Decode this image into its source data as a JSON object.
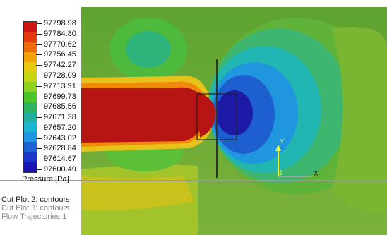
{
  "legend": {
    "title": "Pressure [Pa]",
    "ticks": [
      "97798.98",
      "97784.80",
      "97770.62",
      "97756.45",
      "97742.27",
      "97728.09",
      "97713.91",
      "97699.73",
      "97685.56",
      "97671.38",
      "97657.20",
      "97643.02",
      "97628.84",
      "97614.67",
      "97600.49"
    ],
    "colors": [
      "#d01414",
      "#e43a0c",
      "#ee6a0a",
      "#f4a106",
      "#e7c90e",
      "#c6d311",
      "#8ed11e",
      "#4cc42a",
      "#2cb45e",
      "#1fb0a2",
      "#1ab6d4",
      "#1d95e2",
      "#1d63d6",
      "#1c35c8",
      "#1a13b8"
    ]
  },
  "plots": [
    {
      "label": "Cut Plot 2: contours",
      "color": "#222222"
    },
    {
      "label": "Cut Plot 3: contours",
      "color": "#8a8a8a"
    },
    {
      "label": "Flow Trajectories 1",
      "color": "#8a8a8a"
    }
  ],
  "triad": {
    "y_label": "Y",
    "z_label": "Z",
    "x_label": "X"
  },
  "colors": {
    "background_field": "#6aa93a",
    "high_pressure": "#b81515",
    "low_pressure": "#1a1aa8"
  }
}
